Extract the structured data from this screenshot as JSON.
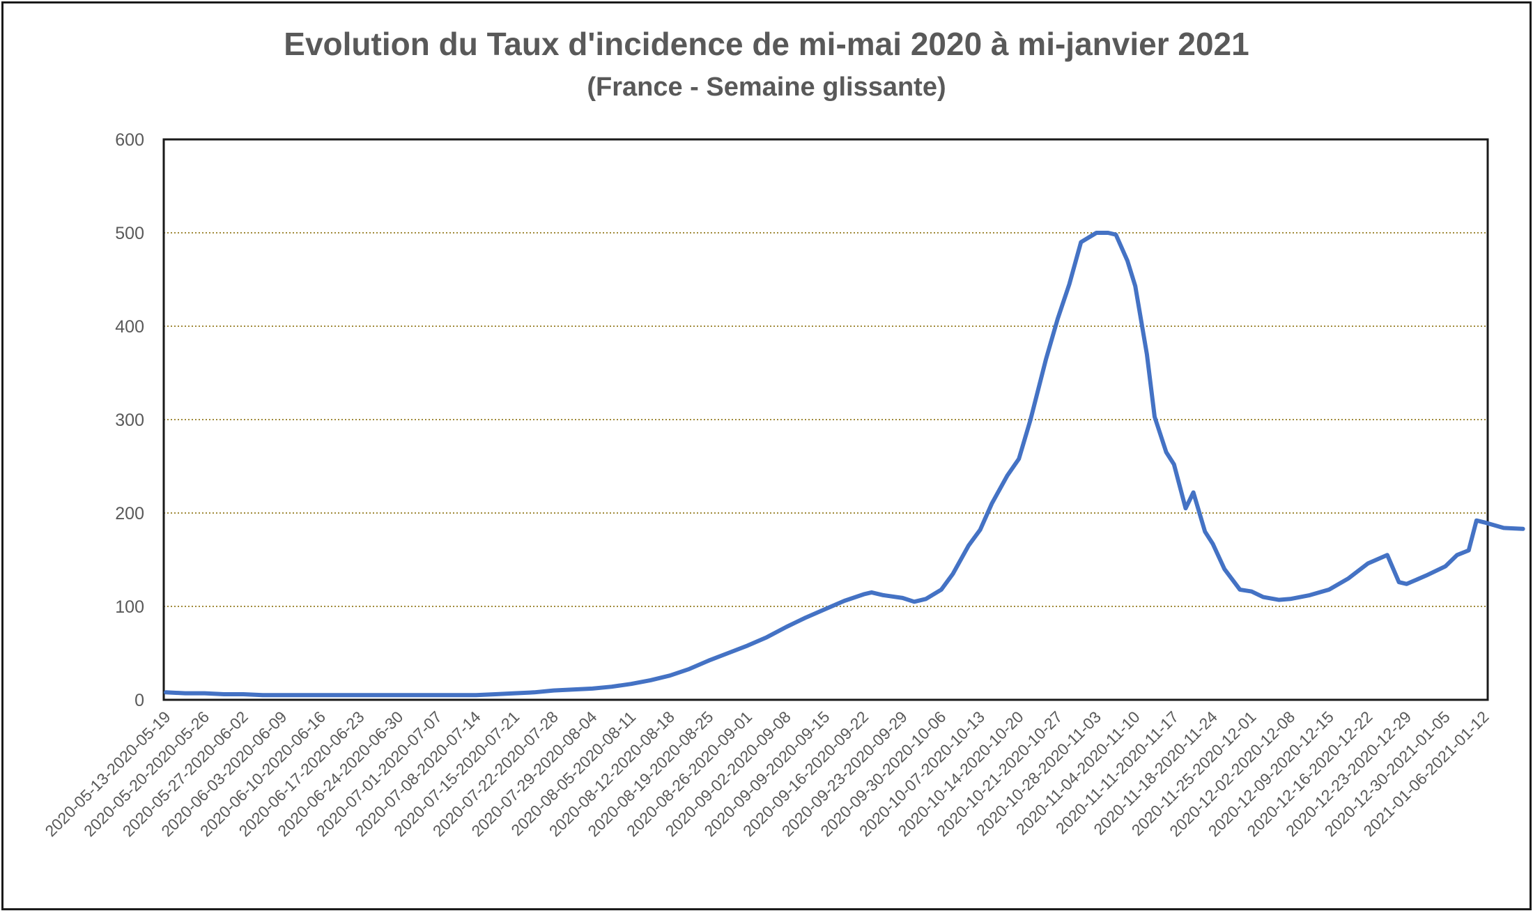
{
  "chart_data": {
    "type": "line",
    "title": "Evolution du Taux d'incidence de mi-mai 2020 à mi-janvier 2021",
    "subtitle": "(France - Semaine glissante)",
    "xlabel": "",
    "ylabel": "",
    "ylim": [
      0,
      600
    ],
    "yticks": [
      0,
      100,
      200,
      300,
      400,
      500,
      600
    ],
    "grid": "horizontal dotted",
    "legend": "none",
    "line_color": "#4472C4",
    "grid_color": "#a08a3a",
    "categories": [
      "2020-05-13-2020-05-19",
      "2020-05-20-2020-05-26",
      "2020-05-27-2020-06-02",
      "2020-06-03-2020-06-09",
      "2020-06-10-2020-06-16",
      "2020-06-17-2020-06-23",
      "2020-06-24-2020-06-30",
      "2020-07-01-2020-07-07",
      "2020-07-08-2020-07-14",
      "2020-07-15-2020-07-21",
      "2020-07-22-2020-07-28",
      "2020-07-29-2020-08-04",
      "2020-08-05-2020-08-11",
      "2020-08-12-2020-08-18",
      "2020-08-19-2020-08-25",
      "2020-08-26-2020-09-01",
      "2020-09-02-2020-09-08",
      "2020-09-09-2020-09-15",
      "2020-09-16-2020-09-22",
      "2020-09-23-2020-09-29",
      "2020-09-30-2020-10-06",
      "2020-10-07-2020-10-13",
      "2020-10-14-2020-10-20",
      "2020-10-21-2020-10-27",
      "2020-10-28-2020-11-03",
      "2020-11-04-2020-11-10",
      "2020-11-11-2020-11-17",
      "2020-11-18-2020-11-24",
      "2020-11-25-2020-12-01",
      "2020-12-02-2020-12-08",
      "2020-12-09-2020-12-15",
      "2020-12-16-2020-12-22",
      "2020-12-23-2020-12-29",
      "2020-12-30-2021-01-05",
      "2021-01-06-2021-01-12"
    ],
    "series": [
      {
        "values": [
          [
            0,
            8
          ],
          [
            0.5,
            7
          ],
          [
            1,
            7
          ],
          [
            1.5,
            6
          ],
          [
            2,
            6
          ],
          [
            2.5,
            5
          ],
          [
            3,
            5
          ],
          [
            3.5,
            5
          ],
          [
            4,
            5
          ],
          [
            4.5,
            5
          ],
          [
            5,
            5
          ],
          [
            5.5,
            5
          ],
          [
            6,
            5
          ],
          [
            6.5,
            5
          ],
          [
            7,
            5
          ],
          [
            7.5,
            5
          ],
          [
            8,
            5
          ],
          [
            8.5,
            6
          ],
          [
            9,
            7
          ],
          [
            9.5,
            8
          ],
          [
            10,
            10
          ],
          [
            10.5,
            11
          ],
          [
            11,
            12
          ],
          [
            11.5,
            14
          ],
          [
            12,
            17
          ],
          [
            12.5,
            21
          ],
          [
            13,
            26
          ],
          [
            13.5,
            33
          ],
          [
            14,
            42
          ],
          [
            14.5,
            50
          ],
          [
            15,
            58
          ],
          [
            15.5,
            67
          ],
          [
            16,
            78
          ],
          [
            16.5,
            88
          ],
          [
            17,
            97
          ],
          [
            17.5,
            106
          ],
          [
            18,
            113
          ],
          [
            18.2,
            115
          ],
          [
            18.5,
            112
          ],
          [
            19,
            109
          ],
          [
            19.3,
            105
          ],
          [
            19.6,
            108
          ],
          [
            20,
            118
          ],
          [
            20.3,
            135
          ],
          [
            20.7,
            165
          ],
          [
            21,
            182
          ],
          [
            21.3,
            210
          ],
          [
            21.7,
            240
          ],
          [
            22,
            258
          ],
          [
            22.3,
            300
          ],
          [
            22.7,
            365
          ],
          [
            23,
            408
          ],
          [
            23.3,
            445
          ],
          [
            23.6,
            490
          ],
          [
            24,
            500
          ],
          [
            24.3,
            500
          ],
          [
            24.5,
            498
          ],
          [
            24.8,
            470
          ],
          [
            25,
            443
          ],
          [
            25.3,
            370
          ],
          [
            25.5,
            303
          ],
          [
            25.8,
            265
          ],
          [
            26,
            252
          ],
          [
            26.3,
            205
          ],
          [
            26.5,
            222
          ],
          [
            26.8,
            180
          ],
          [
            27,
            167
          ],
          [
            27.3,
            140
          ],
          [
            27.7,
            118
          ],
          [
            28,
            116
          ],
          [
            28.3,
            110
          ],
          [
            28.7,
            107
          ],
          [
            29,
            108
          ],
          [
            29.5,
            112
          ],
          [
            30,
            118
          ],
          [
            30.5,
            130
          ],
          [
            31,
            146
          ],
          [
            31.5,
            155
          ],
          [
            31.8,
            126
          ],
          [
            32,
            124
          ],
          [
            32.5,
            133
          ],
          [
            33,
            143
          ],
          [
            33.3,
            155
          ],
          [
            33.6,
            160
          ],
          [
            33.8,
            192
          ],
          [
            34,
            190
          ],
          [
            34.5,
            184
          ],
          [
            35,
            183
          ]
        ]
      }
    ]
  }
}
